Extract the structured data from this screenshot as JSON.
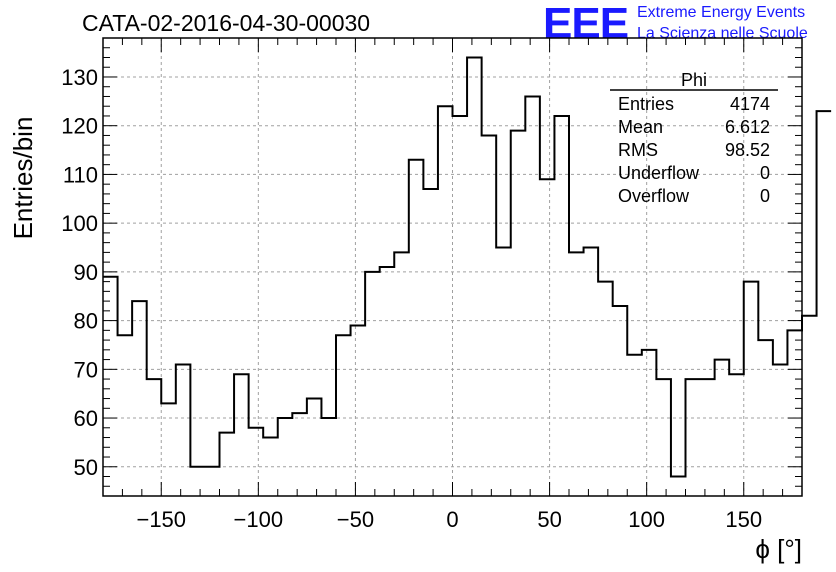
{
  "title": "CATA-02-2016-04-30-00030",
  "logo": {
    "mark": "EEE",
    "line1": "Extreme Energy Events",
    "line2": "La Scienza nelle Scuole",
    "color": "#1a1aff"
  },
  "stats": {
    "name": "Phi",
    "rows": [
      {
        "label": "Entries",
        "value": "4174"
      },
      {
        "label": "Mean",
        "value": "6.612"
      },
      {
        "label": "RMS",
        "value": "98.52"
      },
      {
        "label": "Underflow",
        "value": "0"
      },
      {
        "label": "Overflow",
        "value": "0"
      }
    ]
  },
  "chart_data": {
    "type": "bar",
    "title": "CATA-02-2016-04-30-00030",
    "xlabel": "ϕ [°]",
    "ylabel": "Entries/bin",
    "xlim": [
      -180,
      180
    ],
    "ylim": [
      44,
      138
    ],
    "grid": true,
    "xticks": [
      -150,
      -100,
      -50,
      0,
      50,
      100,
      150
    ],
    "yticks": [
      50,
      60,
      70,
      80,
      90,
      100,
      110,
      120,
      130
    ],
    "bin_edges_start": -180,
    "bin_width": 7.5,
    "values": [
      89,
      77,
      84,
      68,
      63,
      71,
      50,
      50,
      57,
      69,
      58,
      56,
      60,
      61,
      64,
      60,
      77,
      79,
      90,
      91,
      94,
      113,
      107,
      124,
      122,
      134,
      118,
      95,
      119,
      126,
      109,
      122,
      94,
      95,
      88,
      83,
      73,
      74,
      68,
      48,
      68,
      68,
      72,
      69,
      88,
      76,
      71,
      78,
      81,
      123
    ],
    "line_color": "#000000"
  }
}
